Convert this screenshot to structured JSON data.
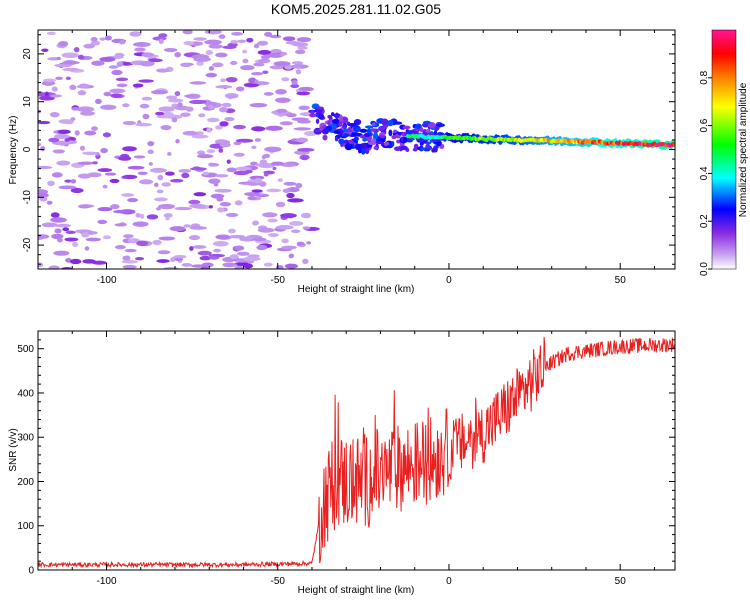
{
  "title": "KOM5.2025.281.11.02.G05",
  "chart_data": [
    {
      "type": "heatmap",
      "name": "spectrogram",
      "xlabel": "Height of straight line (km)",
      "ylabel": "Frequency (Hz)",
      "xlim": [
        -120,
        66
      ],
      "ylim": [
        -25,
        25
      ],
      "xticks": [
        "-100",
        "-50",
        "0",
        "50"
      ],
      "xtick_values": [
        -100,
        -50,
        0,
        50
      ],
      "yticks": [
        "-20",
        "-10",
        "0",
        "10",
        "20"
      ],
      "ytick_values": [
        -20,
        -10,
        0,
        10,
        20
      ],
      "colorbar": {
        "label": "Normalized spectral amplitude",
        "range": [
          0,
          1
        ],
        "ticks": [
          "0.0",
          "0.2",
          "0.4",
          "0.6",
          "0.8"
        ],
        "tick_values": [
          0.0,
          0.2,
          0.4,
          0.6,
          0.8
        ],
        "colormap": [
          "#ffffff",
          "#c8a2f0",
          "#8a2be2",
          "#0000ff",
          "#00ffff",
          "#00ff00",
          "#ffff00",
          "#ff8000",
          "#ff0000",
          "#ff1493"
        ]
      },
      "ridge": {
        "description": "dominant frequency trace",
        "x": [
          -40,
          -35,
          -30,
          -25,
          -20,
          -15,
          -10,
          -5,
          0,
          10,
          20,
          30,
          40,
          50,
          60,
          66
        ],
        "freq_hz": [
          7,
          5,
          3.5,
          2.5,
          3,
          3,
          2.8,
          2.6,
          2.5,
          2.2,
          2.0,
          1.8,
          1.6,
          1.3,
          1.1,
          1.0
        ],
        "amplitude": [
          0.3,
          0.3,
          0.3,
          0.35,
          0.4,
          0.45,
          0.45,
          0.4,
          0.55,
          0.6,
          0.65,
          0.75,
          0.8,
          0.9,
          0.95,
          0.95
        ]
      }
    },
    {
      "type": "line",
      "name": "snr",
      "xlabel": "Height of straight line (km)",
      "ylabel": "SNR (v/v)",
      "xlim": [
        -120,
        66
      ],
      "ylim": [
        0,
        540
      ],
      "xticks": [
        "-100",
        "-50",
        "0",
        "50"
      ],
      "xtick_values": [
        -100,
        -50,
        0,
        50
      ],
      "yticks": [
        "0",
        "100",
        "200",
        "300",
        "400",
        "500"
      ],
      "ytick_values": [
        0,
        100,
        200,
        300,
        400,
        500
      ],
      "color": "#e82020",
      "series_trend": {
        "x": [
          -120,
          -60,
          -40,
          -37,
          -33,
          -25,
          -15,
          -5,
          0,
          10,
          20,
          28,
          35,
          50,
          66
        ],
        "snr": [
          12,
          12,
          15,
          150,
          200,
          200,
          230,
          250,
          270,
          310,
          390,
          460,
          490,
          505,
          510
        ]
      }
    }
  ]
}
